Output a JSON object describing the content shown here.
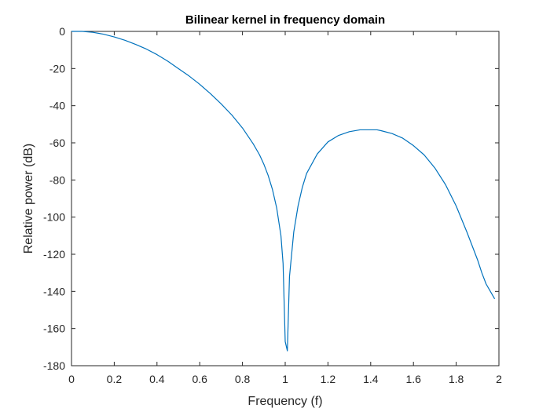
{
  "chart_data": {
    "type": "line",
    "title": "Bilinear kernel in frequency domain",
    "xlabel": "Frequency (f)",
    "ylabel": "Relative power (dB)",
    "xlim": [
      0,
      2
    ],
    "ylim": [
      -180,
      0
    ],
    "xticks": [
      "0",
      "0.2",
      "0.4",
      "0.6",
      "0.8",
      "1",
      "1.2",
      "1.4",
      "1.6",
      "1.8",
      "2"
    ],
    "yticks": [
      "0",
      "-20",
      "-40",
      "-60",
      "-80",
      "-100",
      "-120",
      "-140",
      "-160",
      "-180"
    ],
    "grid": false,
    "legend": "none",
    "series": [
      {
        "color": "#0072BD",
        "x": [
          0,
          0.05,
          0.1,
          0.15,
          0.2,
          0.25,
          0.3,
          0.35,
          0.4,
          0.45,
          0.5,
          0.55,
          0.6,
          0.65,
          0.7,
          0.75,
          0.8,
          0.85,
          0.88,
          0.9,
          0.92,
          0.94,
          0.96,
          0.98,
          0.99,
          1.0,
          1.01,
          1.02,
          1.04,
          1.06,
          1.08,
          1.1,
          1.15,
          1.2,
          1.25,
          1.3,
          1.35,
          1.4,
          1.43,
          1.45,
          1.5,
          1.55,
          1.6,
          1.65,
          1.7,
          1.75,
          1.8,
          1.85,
          1.88,
          1.9,
          1.92,
          1.94,
          1.96,
          1.98
        ],
        "y": [
          0,
          0,
          -0.5,
          -1.5,
          -3,
          -4.8,
          -7,
          -9.5,
          -12.5,
          -16,
          -20,
          -24,
          -28.5,
          -33.5,
          -39,
          -45,
          -52,
          -60.5,
          -66.5,
          -71.5,
          -77.5,
          -85,
          -95,
          -110,
          -125,
          -167,
          -172,
          -132,
          -108,
          -94,
          -84,
          -76.5,
          -66,
          -59.5,
          -56,
          -54,
          -53,
          -53,
          -53,
          -53.5,
          -55,
          -57.5,
          -61.5,
          -66.5,
          -73.5,
          -82.5,
          -94,
          -108,
          -117,
          -123,
          -130,
          -136,
          -140,
          -144
        ]
      }
    ]
  }
}
